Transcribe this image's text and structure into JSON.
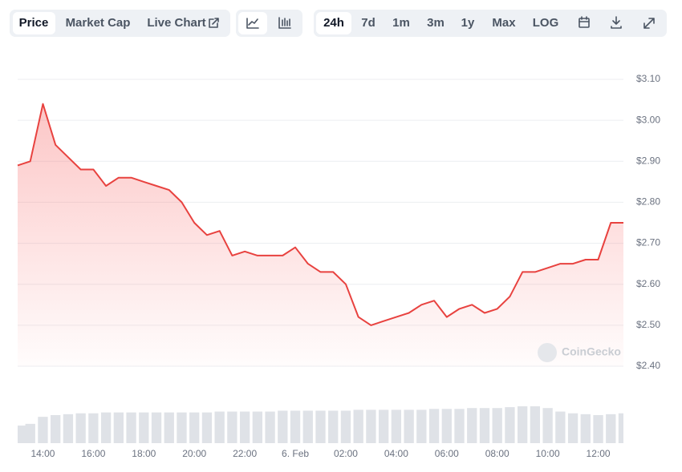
{
  "toolbar": {
    "tabs": [
      "Price",
      "Market Cap",
      "Live Chart"
    ],
    "ranges": [
      "24h",
      "7d",
      "1m",
      "3m",
      "1y",
      "Max",
      "LOG"
    ]
  },
  "watermark": "CoinGecko",
  "chart_data": {
    "type": "line",
    "x": [
      13.0,
      13.5,
      14.0,
      14.5,
      15.0,
      15.5,
      16.0,
      16.5,
      17.0,
      17.5,
      18.0,
      18.5,
      19.0,
      19.5,
      20.0,
      20.5,
      21.0,
      21.5,
      22.0,
      22.5,
      23.0,
      23.5,
      24.0,
      24.5,
      25.0,
      25.5,
      26.0,
      26.5,
      27.0,
      27.5,
      28.0,
      28.5,
      29.0,
      29.5,
      30.0,
      30.5,
      31.0,
      31.5,
      32.0,
      32.5,
      33.0,
      33.5,
      34.0,
      34.5,
      35.0,
      35.5,
      36.0,
      36.5,
      37.0
    ],
    "series": [
      {
        "color": "#e8423f",
        "values": [
          2.89,
          2.9,
          3.04,
          2.94,
          2.91,
          2.88,
          2.88,
          2.84,
          2.86,
          2.86,
          2.85,
          2.84,
          2.83,
          2.8,
          2.75,
          2.72,
          2.73,
          2.67,
          2.68,
          2.67,
          2.67,
          2.67,
          2.69,
          2.65,
          2.63,
          2.63,
          2.6,
          2.52,
          2.5,
          2.51,
          2.52,
          2.53,
          2.55,
          2.56,
          2.52,
          2.54,
          2.55,
          2.53,
          2.54,
          2.57,
          2.63,
          2.63,
          2.64,
          2.65,
          2.65,
          2.66,
          2.66,
          2.75,
          2.75
        ]
      }
    ],
    "volume": {
      "color": "#dfe2e7",
      "values": [
        20,
        22,
        30,
        32,
        33,
        34,
        34,
        35,
        35,
        35,
        35,
        35,
        35,
        35,
        35,
        35,
        36,
        36,
        36,
        36,
        36,
        37,
        37,
        37,
        37,
        37,
        37,
        38,
        38,
        38,
        38,
        38,
        38,
        39,
        39,
        39,
        40,
        40,
        40,
        41,
        42,
        42,
        40,
        36,
        34,
        33,
        32,
        33,
        34
      ]
    },
    "xlim": [
      13,
      37
    ],
    "xticks": [
      {
        "value": 14,
        "label": "14:00"
      },
      {
        "value": 16,
        "label": "16:00"
      },
      {
        "value": 18,
        "label": "18:00"
      },
      {
        "value": 20,
        "label": "20:00"
      },
      {
        "value": 22,
        "label": "22:00"
      },
      {
        "value": 24,
        "label": "6. Feb"
      },
      {
        "value": 26,
        "label": "02:00"
      },
      {
        "value": 28,
        "label": "04:00"
      },
      {
        "value": 30,
        "label": "06:00"
      },
      {
        "value": 32,
        "label": "08:00"
      },
      {
        "value": 34,
        "label": "10:00"
      },
      {
        "value": 36,
        "label": "12:00"
      }
    ],
    "ylim": [
      2.4,
      3.1
    ],
    "yticks": [
      {
        "value": 2.4,
        "label": "$2.40"
      },
      {
        "value": 2.5,
        "label": "$2.50"
      },
      {
        "value": 2.6,
        "label": "$2.60"
      },
      {
        "value": 2.7,
        "label": "$2.70"
      },
      {
        "value": 2.8,
        "label": "$2.80"
      },
      {
        "value": 2.9,
        "label": "$2.90"
      },
      {
        "value": 3.0,
        "label": "$3.00"
      },
      {
        "value": 3.1,
        "label": "$3.10"
      }
    ],
    "grid": true
  }
}
